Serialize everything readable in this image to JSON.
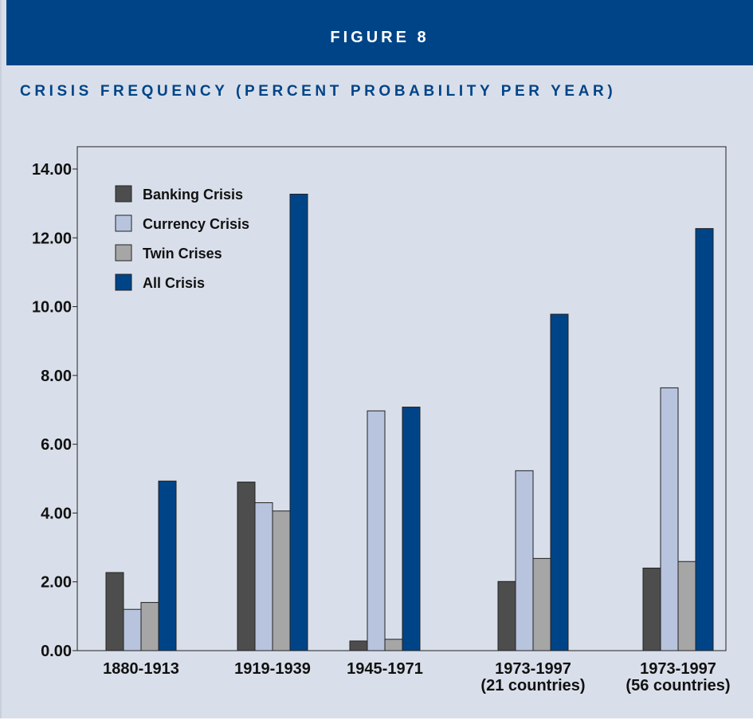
{
  "figure": {
    "label": "FIGURE 8",
    "subtitle": "CRISIS FREQUENCY (PERCENT PROBABILITY PER YEAR)"
  },
  "colors": {
    "header_bg": "#004488",
    "panel_bg": "#d9dfea",
    "Banking Crisis": "#4d4d4d",
    "Currency Crisis": "#b8c4de",
    "Twin Crises": "#a6a6a6",
    "All Crisis": "#004488"
  },
  "chart_data": {
    "type": "bar",
    "title": "",
    "xlabel": "",
    "ylabel": "",
    "ylim": [
      0,
      14
    ],
    "yticks": [
      "0.00",
      "2.00",
      "4.00",
      "6.00",
      "8.00",
      "10.00",
      "12.00",
      "14.00"
    ],
    "categories": [
      [
        "1880-1913"
      ],
      [
        "1919-1939"
      ],
      [
        "1945-1971"
      ],
      [
        "1973-1997",
        "(21 countries)"
      ],
      [
        "1973-1997",
        "(56 countries)"
      ]
    ],
    "series": [
      {
        "name": "Banking Crisis",
        "values": [
          2.27,
          4.9,
          0.28,
          2.01,
          2.4
        ]
      },
      {
        "name": "Currency Crisis",
        "values": [
          1.2,
          4.3,
          6.97,
          5.23,
          7.64
        ]
      },
      {
        "name": "Twin Crises",
        "values": [
          1.4,
          4.06,
          0.33,
          2.68,
          2.59
        ]
      },
      {
        "name": "All Crisis",
        "values": [
          4.93,
          13.27,
          7.08,
          9.78,
          12.27
        ]
      }
    ],
    "legend_position": "top-left",
    "grid": false
  }
}
